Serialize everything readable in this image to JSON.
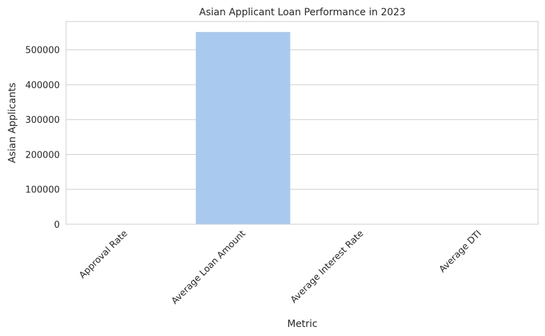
{
  "chart_data": {
    "type": "bar",
    "title": "Asian Applicant Loan Performance in 2023",
    "xlabel": "Metric",
    "ylabel": "Asian Applicants",
    "categories": [
      "Approval Rate",
      "Average Loan Amount",
      "Average Interest Rate",
      "Average DTI"
    ],
    "values": [
      0.7,
      551000,
      6.5,
      38
    ],
    "ylim": [
      0,
      581000
    ],
    "yticks": [
      0,
      100000,
      200000,
      300000,
      400000,
      500000
    ],
    "ytick_labels": [
      "0",
      "100000",
      "200000",
      "300000",
      "400000",
      "500000"
    ],
    "grid": "horizontal",
    "colors": {
      "bar": "#a9c9ee",
      "grid": "#cccccc",
      "frame": "#cccccc",
      "text": "#262626"
    }
  }
}
